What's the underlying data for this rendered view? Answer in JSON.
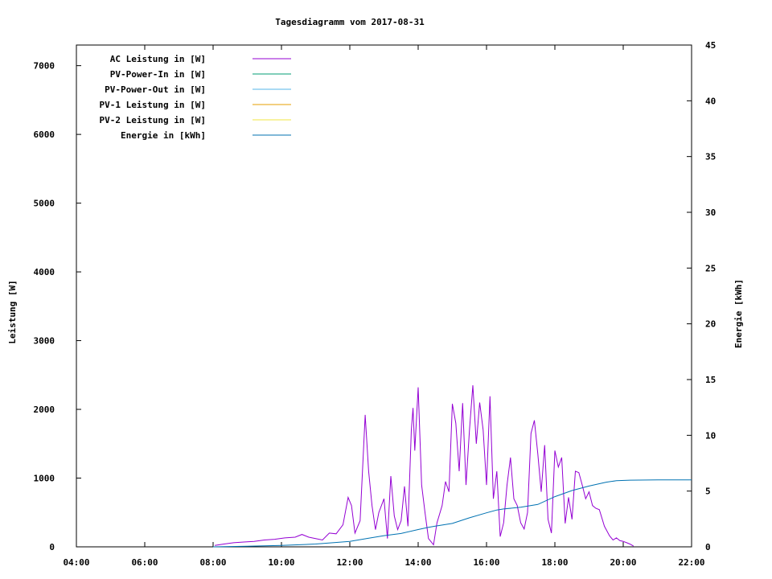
{
  "chart_data": {
    "type": "line",
    "title": "Tagesdiagramm vom 2017-08-31",
    "ylabel": "Leistung [W]",
    "y2label": "Energie [kWh]",
    "xlim": [
      4,
      22
    ],
    "ylim": [
      0,
      7300
    ],
    "y2lim": [
      0,
      45
    ],
    "xticks": [
      {
        "v": 4,
        "label": "04:00"
      },
      {
        "v": 6,
        "label": "06:00"
      },
      {
        "v": 8,
        "label": "08:00"
      },
      {
        "v": 10,
        "label": "10:00"
      },
      {
        "v": 12,
        "label": "12:00"
      },
      {
        "v": 14,
        "label": "14:00"
      },
      {
        "v": 16,
        "label": "16:00"
      },
      {
        "v": 18,
        "label": "18:00"
      },
      {
        "v": 20,
        "label": "20:00"
      },
      {
        "v": 22,
        "label": "22:00"
      }
    ],
    "yticks": [
      {
        "v": 0,
        "label": "0"
      },
      {
        "v": 1000,
        "label": "1000"
      },
      {
        "v": 2000,
        "label": "2000"
      },
      {
        "v": 3000,
        "label": "3000"
      },
      {
        "v": 4000,
        "label": "4000"
      },
      {
        "v": 5000,
        "label": "5000"
      },
      {
        "v": 6000,
        "label": "6000"
      },
      {
        "v": 7000,
        "label": "7000"
      }
    ],
    "y2ticks": [
      {
        "v": 0,
        "label": "0"
      },
      {
        "v": 5,
        "label": "5"
      },
      {
        "v": 10,
        "label": "10"
      },
      {
        "v": 15,
        "label": "15"
      },
      {
        "v": 20,
        "label": "20"
      },
      {
        "v": 25,
        "label": "25"
      },
      {
        "v": 30,
        "label": "30"
      },
      {
        "v": 35,
        "label": "35"
      },
      {
        "v": 40,
        "label": "40"
      },
      {
        "v": 45,
        "label": "45"
      }
    ],
    "legend_position": "top-left",
    "series": [
      {
        "name": "AC Leistung in [W]",
        "color": "#9400d3",
        "axis": "y",
        "points": [
          [
            8.05,
            20
          ],
          [
            8.3,
            40
          ],
          [
            8.6,
            60
          ],
          [
            8.9,
            70
          ],
          [
            9.2,
            80
          ],
          [
            9.5,
            100
          ],
          [
            9.8,
            110
          ],
          [
            10.1,
            130
          ],
          [
            10.4,
            140
          ],
          [
            10.6,
            180
          ],
          [
            10.8,
            140
          ],
          [
            11.0,
            120
          ],
          [
            11.2,
            100
          ],
          [
            11.4,
            200
          ],
          [
            11.6,
            190
          ],
          [
            11.8,
            320
          ],
          [
            11.95,
            720
          ],
          [
            12.05,
            600
          ],
          [
            12.15,
            200
          ],
          [
            12.3,
            380
          ],
          [
            12.45,
            1920
          ],
          [
            12.55,
            1100
          ],
          [
            12.65,
            600
          ],
          [
            12.75,
            250
          ],
          [
            12.85,
            500
          ],
          [
            13.0,
            700
          ],
          [
            13.1,
            120
          ],
          [
            13.2,
            1030
          ],
          [
            13.3,
            450
          ],
          [
            13.4,
            250
          ],
          [
            13.5,
            380
          ],
          [
            13.6,
            880
          ],
          [
            13.7,
            300
          ],
          [
            13.8,
            1700
          ],
          [
            13.85,
            2020
          ],
          [
            13.9,
            1400
          ],
          [
            14.0,
            2320
          ],
          [
            14.1,
            900
          ],
          [
            14.2,
            500
          ],
          [
            14.3,
            120
          ],
          [
            14.45,
            30
          ],
          [
            14.55,
            350
          ],
          [
            14.7,
            600
          ],
          [
            14.8,
            950
          ],
          [
            14.9,
            800
          ],
          [
            15.0,
            2080
          ],
          [
            15.1,
            1800
          ],
          [
            15.2,
            1100
          ],
          [
            15.3,
            2090
          ],
          [
            15.4,
            900
          ],
          [
            15.5,
            1700
          ],
          [
            15.6,
            2350
          ],
          [
            15.7,
            1500
          ],
          [
            15.8,
            2100
          ],
          [
            15.9,
            1700
          ],
          [
            16.0,
            900
          ],
          [
            16.1,
            2190
          ],
          [
            16.2,
            700
          ],
          [
            16.3,
            1100
          ],
          [
            16.4,
            150
          ],
          [
            16.5,
            350
          ],
          [
            16.6,
            900
          ],
          [
            16.7,
            1300
          ],
          [
            16.8,
            700
          ],
          [
            16.9,
            600
          ],
          [
            17.0,
            350
          ],
          [
            17.1,
            260
          ],
          [
            17.2,
            500
          ],
          [
            17.3,
            1650
          ],
          [
            17.4,
            1840
          ],
          [
            17.5,
            1350
          ],
          [
            17.6,
            800
          ],
          [
            17.7,
            1480
          ],
          [
            17.8,
            400
          ],
          [
            17.9,
            200
          ],
          [
            18.0,
            1400
          ],
          [
            18.1,
            1160
          ],
          [
            18.2,
            1300
          ],
          [
            18.3,
            340
          ],
          [
            18.4,
            720
          ],
          [
            18.5,
            400
          ],
          [
            18.6,
            1100
          ],
          [
            18.7,
            1080
          ],
          [
            18.8,
            900
          ],
          [
            18.9,
            700
          ],
          [
            19.0,
            800
          ],
          [
            19.1,
            600
          ],
          [
            19.2,
            560
          ],
          [
            19.3,
            540
          ],
          [
            19.45,
            300
          ],
          [
            19.6,
            160
          ],
          [
            19.7,
            100
          ],
          [
            19.8,
            130
          ],
          [
            19.9,
            90
          ],
          [
            20.0,
            80
          ],
          [
            20.1,
            60
          ],
          [
            20.2,
            40
          ],
          [
            20.3,
            10
          ]
        ]
      },
      {
        "name": "PV-Power-In in [W]",
        "color": "#009e73",
        "axis": "y",
        "points": []
      },
      {
        "name": "PV-Power-Out in [W]",
        "color": "#56b4e9",
        "axis": "y",
        "points": []
      },
      {
        "name": "PV-1 Leistung in [W]",
        "color": "#e69f00",
        "axis": "y",
        "points": []
      },
      {
        "name": "PV-2 Leistung in [W]",
        "color": "#f0e442",
        "axis": "y",
        "points": []
      },
      {
        "name": "Energie in [kWh]",
        "color": "#0072b2",
        "axis": "y2",
        "points": [
          [
            8.0,
            0.0
          ],
          [
            9.0,
            0.05
          ],
          [
            10.0,
            0.12
          ],
          [
            11.0,
            0.25
          ],
          [
            12.0,
            0.48
          ],
          [
            12.5,
            0.75
          ],
          [
            13.0,
            1.0
          ],
          [
            13.5,
            1.2
          ],
          [
            14.0,
            1.55
          ],
          [
            14.3,
            1.75
          ],
          [
            14.5,
            1.85
          ],
          [
            15.0,
            2.1
          ],
          [
            15.5,
            2.6
          ],
          [
            16.0,
            3.05
          ],
          [
            16.3,
            3.3
          ],
          [
            16.5,
            3.4
          ],
          [
            17.0,
            3.55
          ],
          [
            17.5,
            3.8
          ],
          [
            18.0,
            4.5
          ],
          [
            18.5,
            5.05
          ],
          [
            19.0,
            5.45
          ],
          [
            19.5,
            5.8
          ],
          [
            19.8,
            5.93
          ],
          [
            20.2,
            5.98
          ],
          [
            21.0,
            6.0
          ],
          [
            22.0,
            6.0
          ]
        ]
      }
    ]
  }
}
